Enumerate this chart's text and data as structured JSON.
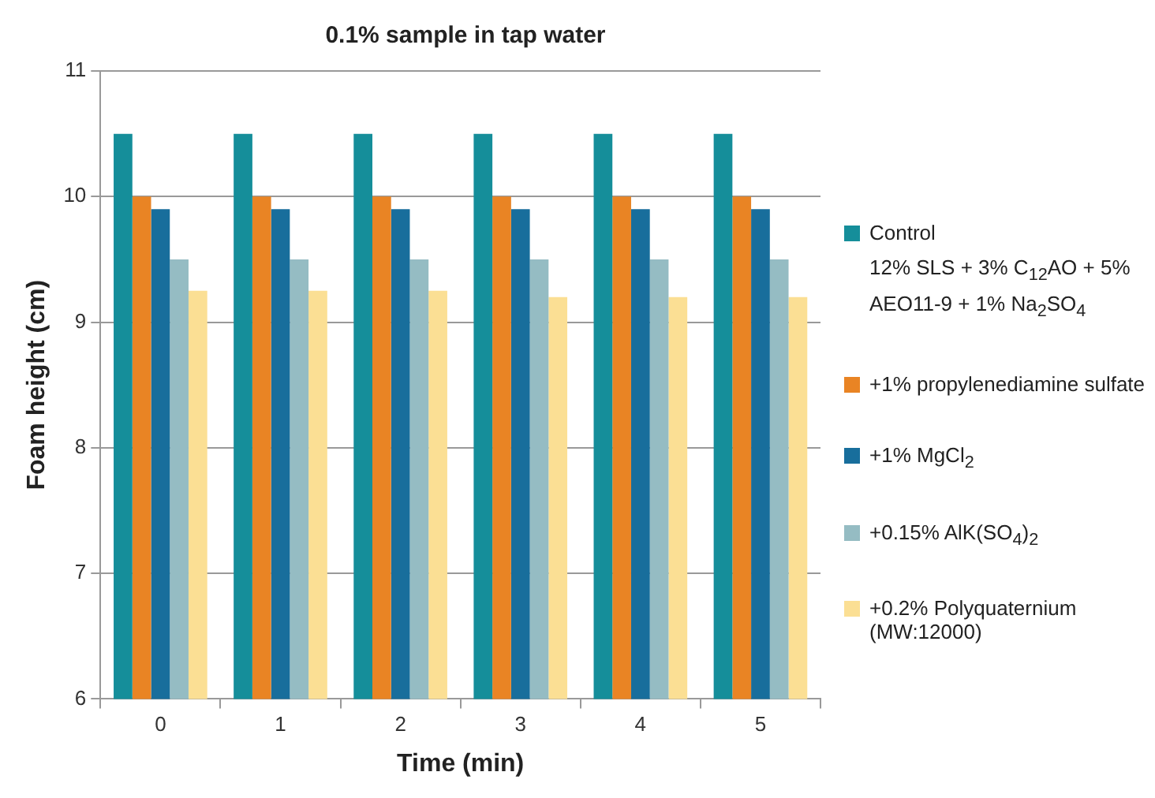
{
  "chart_data": {
    "type": "bar",
    "title": "0.1% sample in tap water",
    "xlabel": "Time (min)",
    "ylabel": "Foam height (cm)",
    "categories": [
      "0",
      "1",
      "2",
      "3",
      "4",
      "5"
    ],
    "series": [
      {
        "name": "Control",
        "color": "#158e9a",
        "values": [
          10.5,
          10.5,
          10.5,
          10.5,
          10.5,
          10.5
        ]
      },
      {
        "name": "+1% propylenediamine sulfate",
        "color": "#e98424",
        "values": [
          10,
          10,
          10,
          10,
          10,
          10
        ]
      },
      {
        "name": "+1% MgCl$_{2}$",
        "color": "#186e9c",
        "values": [
          9.9,
          9.9,
          9.9,
          9.9,
          9.9,
          9.9
        ]
      },
      {
        "name": "+0.15% AlK(SO$_{4}$)$_{2}$",
        "color": "#95bcc3",
        "values": [
          9.5,
          9.5,
          9.5,
          9.5,
          9.5,
          9.5
        ]
      },
      {
        "name": "+0.2% Polyquaternium (MW:12000)",
        "color": "#fbdf94",
        "values": [
          9.25,
          9.25,
          9.25,
          9.2,
          9.2,
          9.2
        ]
      }
    ],
    "annotations": [
      "12% SLS + 3% C$_{12}$AO + 5%  AEO11-9 + 1% Na$_{2}$SO$_{4}$"
    ],
    "ylim": [
      6,
      11
    ],
    "yticks": [
      6,
      7,
      8,
      9,
      10,
      11
    ],
    "grid": "y",
    "legend": "right"
  }
}
